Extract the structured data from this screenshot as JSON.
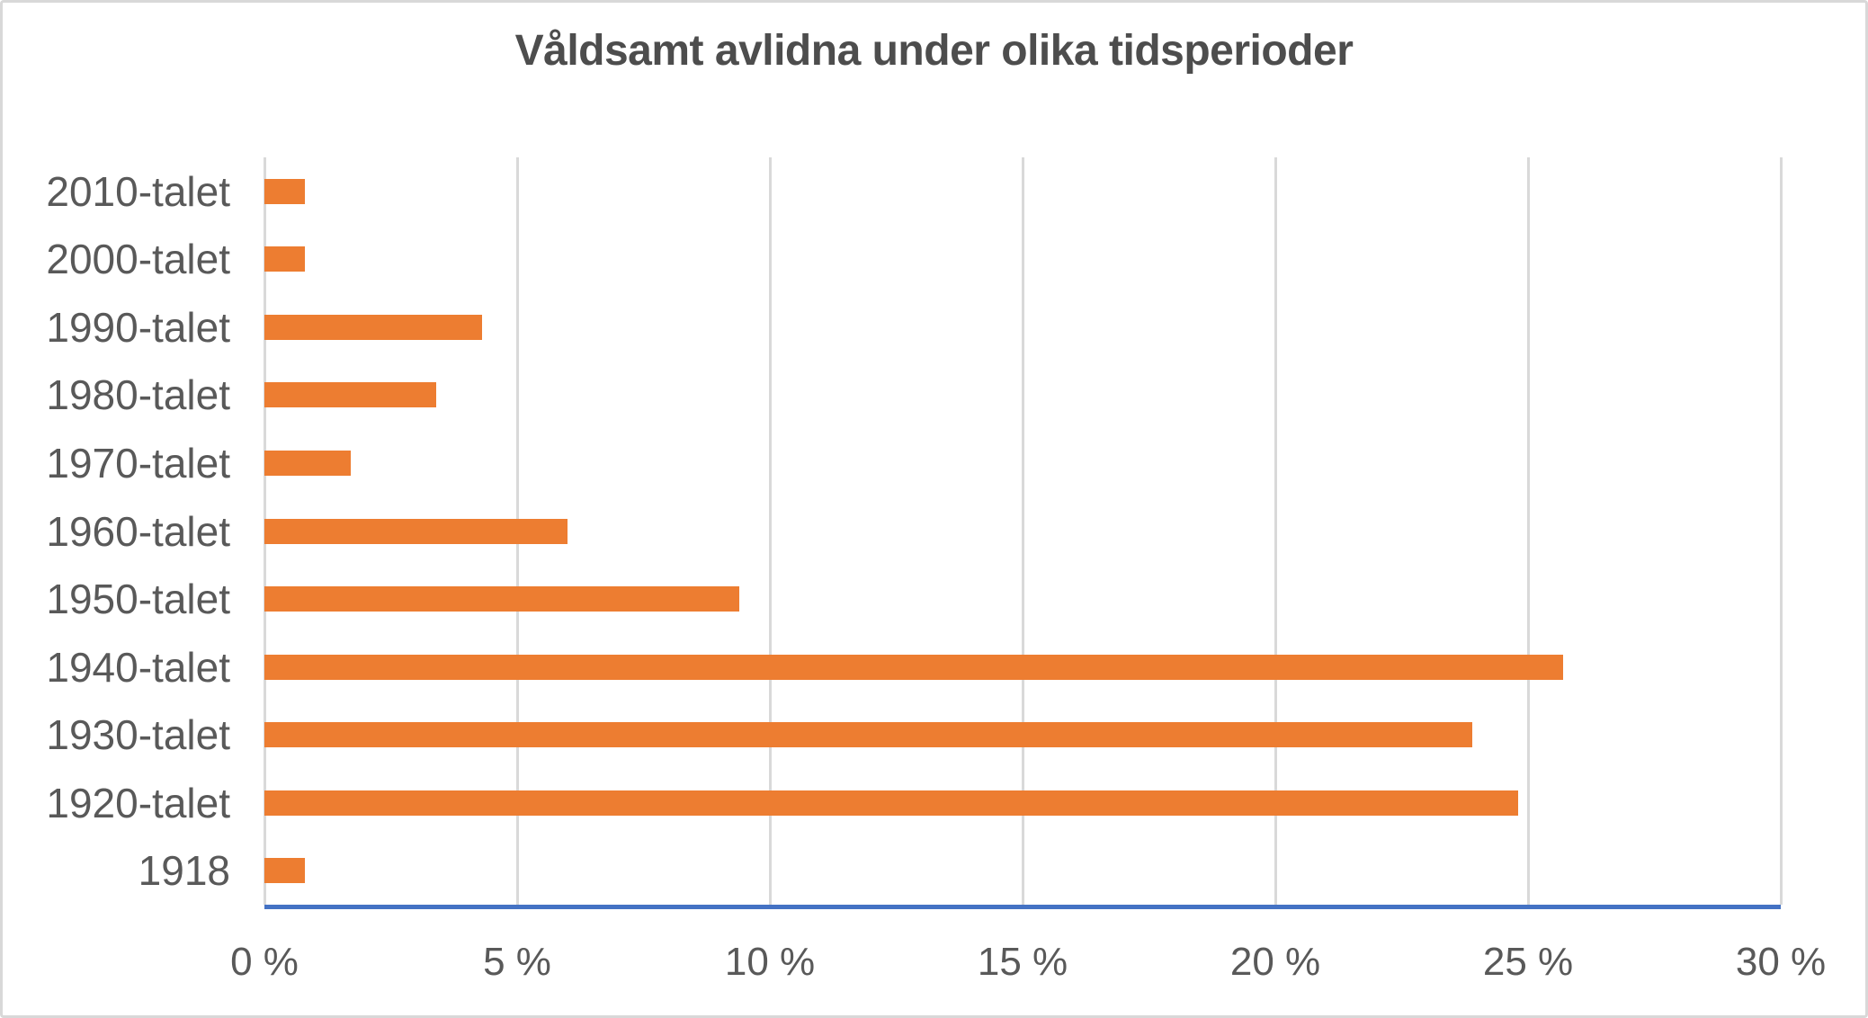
{
  "chart_data": {
    "type": "bar",
    "orientation": "horizontal",
    "title": "Våldsamt avlidna under olika tidsperioder",
    "categories": [
      "2010-talet",
      "2000-talet",
      "1990-talet",
      "1980-talet",
      "1970-talet",
      "1960-talet",
      "1950-talet",
      "1940-talet",
      "1930-talet",
      "1920-talet",
      "1918"
    ],
    "values": [
      0.8,
      0.8,
      4.3,
      3.4,
      1.7,
      6.0,
      9.4,
      25.7,
      23.9,
      24.8,
      0.8
    ],
    "value_unit": "%",
    "xlabel": "",
    "ylabel": "",
    "xlim": [
      0,
      30
    ],
    "x_tick_values": [
      0,
      5,
      10,
      15,
      20,
      25,
      30
    ],
    "x_tick_labels": [
      "0 %",
      "5 %",
      "10 %",
      "15 %",
      "20 %",
      "25 %",
      "30 %"
    ],
    "grid": "vertical-only",
    "legend": "none",
    "colors": {
      "bar": "#ED7D31",
      "axis_line": "#4472C4",
      "gridline": "#D9D9D9",
      "tick_text": "#595959",
      "category_text": "#595959",
      "title_text": "#4D4D4D",
      "frame_border": "#D8D8D8",
      "background": "#FFFFFF"
    }
  }
}
